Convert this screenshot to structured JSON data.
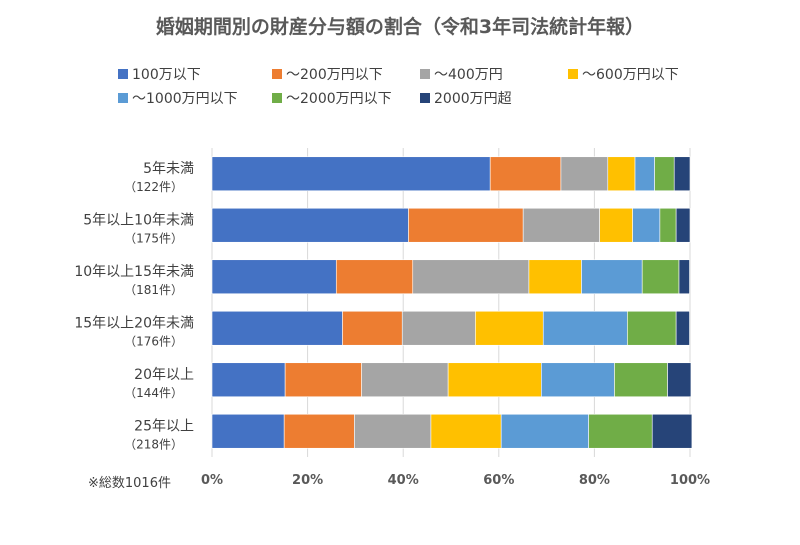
{
  "chart_data": {
    "type": "bar",
    "orientation": "horizontal",
    "stacked": true,
    "normalized": true,
    "title": "婚姻期間別の財産分与額の割合（令和3年司法統計年報）",
    "categories": [
      {
        "label": "5年未満",
        "count": "（122件）"
      },
      {
        "label": "5年以上10年未満",
        "count": "（175件）"
      },
      {
        "label": "10年以上15年未満",
        "count": "（181件）"
      },
      {
        "label": "15年以上20年未満",
        "count": "（176件）"
      },
      {
        "label": "20年以上",
        "count": "（144件）"
      },
      {
        "label": "25年以上",
        "count": "（218件）"
      }
    ],
    "series": [
      {
        "name": "100万以下",
        "color": "#4472C4",
        "values": [
          58.2,
          41.1,
          26.0,
          27.3,
          15.3,
          15.1
        ]
      },
      {
        "name": "〜200万円以下",
        "color": "#ED7D31",
        "values": [
          14.8,
          24.0,
          16.0,
          12.5,
          16.0,
          14.7
        ]
      },
      {
        "name": "〜400万円",
        "color": "#A5A5A5",
        "values": [
          9.8,
          16.0,
          24.3,
          15.3,
          18.1,
          16.0
        ]
      },
      {
        "name": "〜600万円以下",
        "color": "#FFC000",
        "values": [
          5.7,
          6.9,
          11.0,
          14.2,
          19.5,
          14.7
        ]
      },
      {
        "name": "〜1000万円以下",
        "color": "#5B9BD5",
        "values": [
          4.1,
          5.7,
          12.7,
          17.6,
          15.3,
          18.3
        ]
      },
      {
        "name": "〜2000万円以下",
        "color": "#70AD47",
        "values": [
          4.1,
          3.4,
          7.7,
          10.2,
          11.1,
          13.3
        ]
      },
      {
        "name": "2000万円超",
        "color": "#264478",
        "values": [
          3.3,
          2.9,
          2.2,
          2.8,
          4.9,
          8.3
        ]
      }
    ],
    "x_ticks": [
      "0%",
      "20%",
      "40%",
      "60%",
      "80%",
      "100%"
    ],
    "xlim": [
      0,
      100
    ],
    "grid": true,
    "legend_position": "top",
    "note": "※総数1016件"
  }
}
